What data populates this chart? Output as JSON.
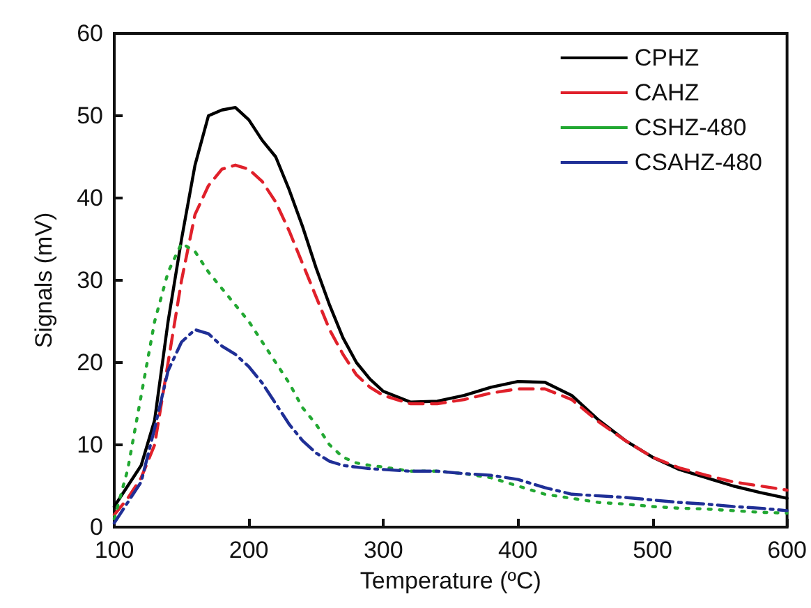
{
  "chart_data": {
    "type": "line",
    "xlabel": "Temperature (ºC)",
    "ylabel": "Signals (mV)",
    "xlim": [
      100,
      600
    ],
    "xticks": [
      100,
      200,
      300,
      400,
      500,
      600
    ],
    "ylim": [
      0,
      60
    ],
    "yticks": [
      0,
      10,
      20,
      30,
      40,
      50,
      60
    ],
    "grid": false,
    "legend": "top right",
    "marker": "none",
    "x": [
      100,
      110,
      120,
      130,
      140,
      150,
      160,
      170,
      180,
      190,
      200,
      210,
      220,
      230,
      240,
      250,
      260,
      270,
      280,
      290,
      300,
      320,
      340,
      360,
      380,
      400,
      420,
      440,
      460,
      480,
      500,
      520,
      540,
      560,
      580,
      600
    ],
    "series": [
      {
        "name": "CPHZ",
        "color": "#000000",
        "line_style": "solid",
        "values": [
          2.5,
          5,
          7.5,
          13,
          25,
          35,
          44,
          50,
          50.7,
          51,
          49.5,
          47,
          45,
          41,
          36.5,
          31.5,
          27,
          23,
          20,
          18,
          16.5,
          15.2,
          15.3,
          16,
          17,
          17.7,
          17.6,
          16,
          13,
          10.5,
          8.5,
          7,
          6,
          5,
          4.2,
          3.5
        ]
      },
      {
        "name": "CAHZ",
        "color": "#e0202a",
        "line_style": "dashed",
        "values": [
          1.5,
          3.5,
          6,
          10,
          20,
          30,
          38,
          41.5,
          43.5,
          44,
          43.5,
          42,
          39.5,
          36,
          32,
          28,
          24,
          21,
          18.5,
          17,
          16,
          15,
          15,
          15.5,
          16.3,
          16.8,
          16.8,
          15.5,
          12.8,
          10.5,
          8.5,
          7.2,
          6.3,
          5.5,
          5,
          4.5
        ]
      },
      {
        "name": "CSHZ-480",
        "color": "#22a832",
        "line_style": "dotted",
        "values": [
          1,
          7,
          16,
          25,
          31,
          34.5,
          33.5,
          31,
          29,
          27,
          25,
          22.5,
          20,
          17.5,
          14.5,
          12.5,
          10,
          8.5,
          7.8,
          7.5,
          7.3,
          6.8,
          6.8,
          6.5,
          6,
          5,
          4,
          3.5,
          3,
          2.8,
          2.5,
          2.3,
          2.2,
          2,
          1.8,
          1.7
        ]
      },
      {
        "name": "CSAHZ-480",
        "color": "#1f2f96",
        "line_style": "dashdot",
        "values": [
          0.5,
          3,
          5.5,
          12,
          19,
          22.5,
          24,
          23.5,
          22,
          21,
          19.5,
          17.5,
          15,
          12.5,
          10.5,
          9,
          8,
          7.5,
          7.3,
          7.1,
          7,
          6.8,
          6.8,
          6.5,
          6.3,
          5.8,
          4.8,
          4,
          3.8,
          3.6,
          3.3,
          3,
          2.8,
          2.5,
          2.3,
          2
        ]
      }
    ]
  }
}
